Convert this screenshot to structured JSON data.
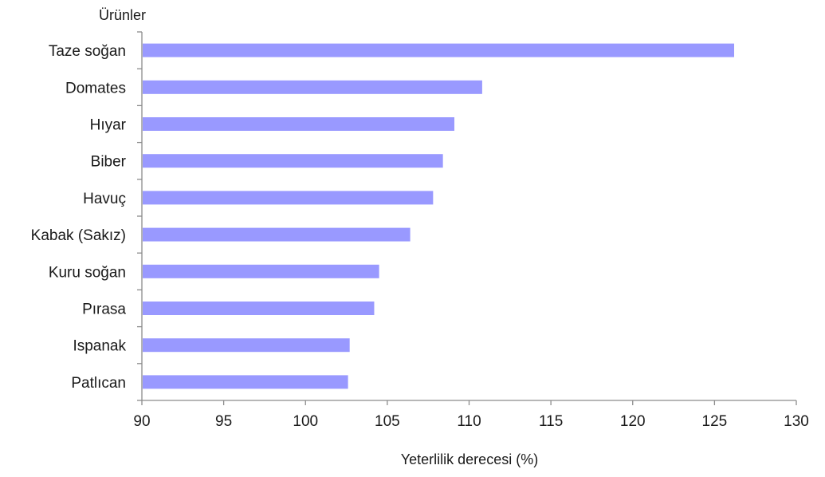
{
  "chart_data": {
    "type": "bar",
    "orientation": "horizontal",
    "ylabel": "Ürünler",
    "xlabel": "Yeterlilik derecesi (%)",
    "categories": [
      "Taze soğan",
      "Domates",
      "Hıyar",
      "Biber",
      "Havuç",
      "Kabak (Sakız)",
      "Kuru soğan",
      "Pırasa",
      "Ispanak",
      "Patlıcan"
    ],
    "values": [
      126.2,
      110.8,
      109.1,
      108.4,
      107.8,
      106.4,
      104.5,
      104.2,
      102.7,
      102.6
    ],
    "xlim": [
      90,
      130
    ],
    "xticks": [
      90,
      95,
      100,
      105,
      110,
      115,
      120,
      125,
      130
    ],
    "grid": false,
    "legend": "none",
    "colors": {
      "bar": "#9999ff",
      "axis": "#8c8c8c",
      "text": "#1a1a1a"
    }
  }
}
